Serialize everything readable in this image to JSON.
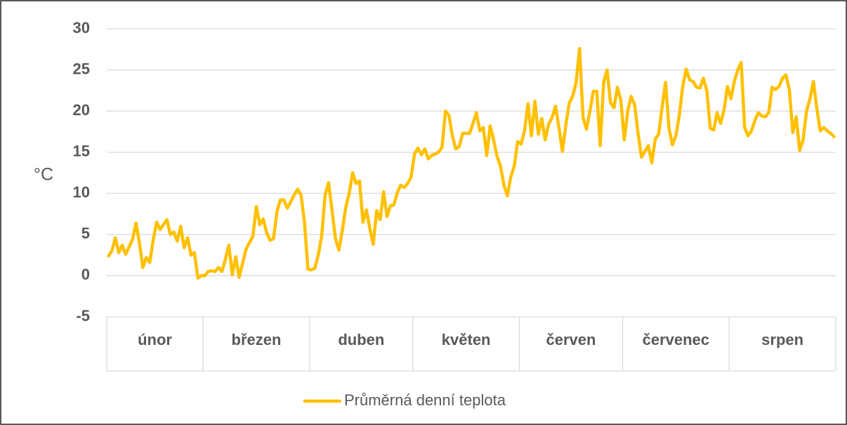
{
  "chart_data": {
    "type": "line",
    "y_label": "°C",
    "categories": [
      "únor",
      "březen",
      "duben",
      "květen",
      "červen",
      "červenec",
      "srpen"
    ],
    "ylim": [
      -5,
      30
    ],
    "yticks": [
      -5,
      0,
      5,
      10,
      15,
      20,
      25,
      30
    ],
    "grid": true,
    "legend": "bottom",
    "series": [
      {
        "name": "Průměrná denní teplota",
        "color": "#ffc000",
        "values": [
          [
            2.4,
            3,
            4.6,
            2.8,
            3.7,
            2.6,
            3.5,
            4.4,
            6.4,
            4,
            1,
            2.2,
            1.6,
            4.3,
            6.5,
            5.6,
            6.2,
            6.8,
            5,
            5.3,
            4.2,
            6,
            3.4,
            4.6,
            2.5,
            2.8,
            -0.3,
            0
          ],
          [
            0,
            0.5,
            0.6,
            0.5,
            1,
            0.5,
            2,
            3.7,
            0.1,
            2.3,
            -0.2,
            1.5,
            3.2,
            4,
            4.8,
            8.4,
            6.2,
            6.9,
            5.2,
            4.3,
            4.5,
            7.8,
            9.2,
            9.2,
            8.2,
            9,
            9.8,
            10.5,
            9.8,
            6.5,
            0.8
          ],
          [
            0.7,
            0.9,
            2.5,
            4.8,
            9.8,
            11.3,
            8,
            4.5,
            3.1,
            5.5,
            8.3,
            10,
            12.5,
            11.2,
            11.5,
            6.5,
            8,
            5.7,
            3.8,
            7.9,
            6.8,
            10.2,
            7.2,
            8.5,
            8.6,
            10.1,
            11,
            10.7,
            11.2,
            12
          ],
          [
            14.8,
            15.5,
            14.7,
            15.4,
            14.2,
            14.6,
            14.8,
            15,
            15.6,
            20,
            19.5,
            17,
            15.4,
            15.7,
            17.3,
            17.3,
            17.3,
            18.5,
            19.8,
            17.6,
            18,
            14.6,
            18.2,
            16.5,
            14.5,
            13.3,
            11,
            9.7,
            12,
            13.3,
            16.3
          ],
          [
            16,
            17.6,
            20.9,
            17,
            21.2,
            17.2,
            19.1,
            16.5,
            18.4,
            19.2,
            20.6,
            18,
            15.1,
            18.3,
            21,
            21.8,
            23.5,
            27.6,
            19.2,
            17.8,
            20,
            22.4,
            22.4,
            15.8,
            23.5,
            25,
            21,
            20.4,
            22.9,
            21.3
          ],
          [
            16.5,
            20,
            21.8,
            20.8,
            17.3,
            14.4,
            15.1,
            15.8,
            13.7,
            16.6,
            17.2,
            20.5,
            23.5,
            17.9,
            15.9,
            17,
            19.5,
            23,
            25.1,
            23.8,
            23.6,
            22.9,
            22.8,
            24,
            22.5,
            17.9,
            17.7,
            19.8,
            18.5,
            20.1,
            23
          ],
          [
            21.5,
            23.6,
            25,
            25.9,
            18,
            17,
            17.6,
            18.9,
            19.8,
            19.4,
            19.3,
            19.8,
            22.9,
            22.6,
            23,
            24,
            24.4,
            22.6,
            17.4,
            19.3,
            15.2,
            16.5,
            20,
            21.5,
            23.6,
            20.3,
            17.6,
            18,
            17.6,
            17.3,
            16.9
          ]
        ]
      }
    ]
  }
}
